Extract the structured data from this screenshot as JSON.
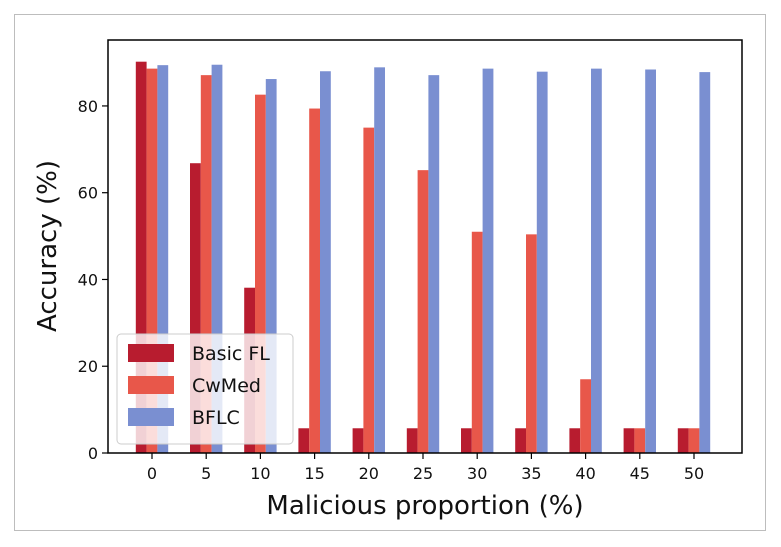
{
  "chart_data": {
    "type": "bar",
    "xlabel": "Malicious proportion (%)",
    "ylabel": "Accuracy (%)",
    "categories": [
      "0",
      "5",
      "10",
      "15",
      "20",
      "25",
      "30",
      "35",
      "40",
      "45",
      "50"
    ],
    "series": [
      {
        "name": "Basic FL",
        "color": "#b81c2f",
        "values": [
          90.2,
          66.8,
          38.1,
          5.7,
          5.7,
          5.7,
          5.7,
          5.7,
          5.7,
          5.7,
          5.7
        ]
      },
      {
        "name": "CwMed",
        "color": "#e8574a",
        "values": [
          88.6,
          87.1,
          82.6,
          79.4,
          75.0,
          65.2,
          51.0,
          50.4,
          17.0,
          5.7,
          5.7
        ]
      },
      {
        "name": "BFLC",
        "color": "#7a8fd1",
        "values": [
          89.4,
          89.5,
          86.2,
          88.0,
          88.9,
          87.1,
          88.6,
          87.9,
          88.6,
          88.4,
          87.8
        ]
      }
    ],
    "yticks": [
      0,
      20,
      40,
      60,
      80
    ],
    "ylim": [
      0,
      95.2
    ],
    "grid": false,
    "legend_position": "lower-left"
  }
}
